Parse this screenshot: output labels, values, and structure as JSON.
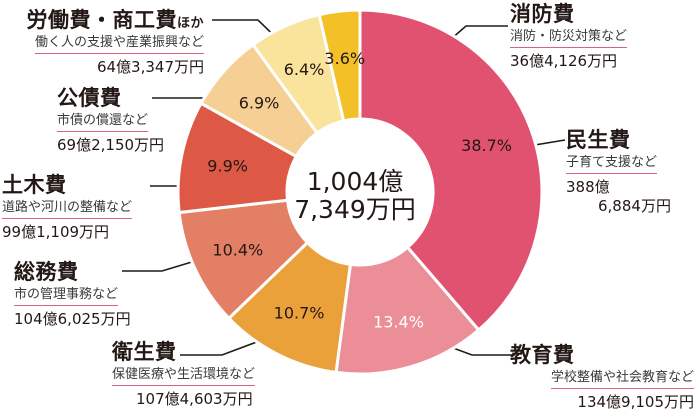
{
  "chart_data": {
    "type": "pie",
    "center": [
      "1,004億",
      "7,349万円"
    ],
    "series": [
      {
        "name": "民生費",
        "description": "子育て支援など",
        "amount": [
          "388億",
          "6,884万円"
        ],
        "percent": 38.7,
        "percent_label": "38.7%",
        "color": "#e0526f",
        "label_color": "#231815"
      },
      {
        "name": "教育費",
        "description": "学校整備や社会教育など",
        "amount": [
          "134億9,105万円"
        ],
        "percent": 13.4,
        "percent_label": "13.4%",
        "color": "#eb8e98",
        "label_color": "#ffffff"
      },
      {
        "name": "衛生費",
        "description": "保健医療や生活環境など",
        "amount": [
          "107億4,603万円"
        ],
        "percent": 10.7,
        "percent_label": "10.7%",
        "color": "#eba13a",
        "label_color": "#231815"
      },
      {
        "name": "総務費",
        "description": "市の管理事務など",
        "amount": [
          "104億6,025万円"
        ],
        "percent": 10.4,
        "percent_label": "10.4%",
        "color": "#e37f64",
        "label_color": "#231815"
      },
      {
        "name": "土木費",
        "description": "道路や河川の整備など",
        "amount": [
          "99億1,109万円"
        ],
        "percent": 9.9,
        "percent_label": "9.9%",
        "color": "#dd5845",
        "label_color": "#231815"
      },
      {
        "name": "公債費",
        "description": "市債の償還など",
        "amount": [
          "69億2,150万円"
        ],
        "percent": 6.9,
        "percent_label": "6.9%",
        "color": "#f6cf95",
        "label_color": "#231815"
      },
      {
        "name": "労働費・商工費",
        "name_suffix": "ほか",
        "description": "働く人の支援や産業振興など",
        "amount": [
          "64億3,347万円"
        ],
        "percent": 6.4,
        "percent_label": "6.4%",
        "color": "#fae39a",
        "label_color": "#231815"
      },
      {
        "name": "消防費",
        "description": "消防・防災対策など",
        "amount": [
          "36億4,126万円"
        ],
        "percent": 3.6,
        "percent_label": "3.6%",
        "color": "#f4c028",
        "label_color": "#231815"
      }
    ]
  }
}
